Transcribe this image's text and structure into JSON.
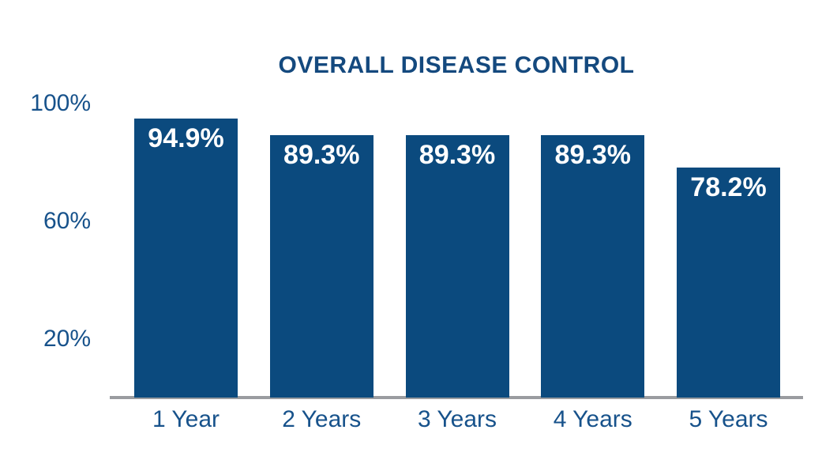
{
  "chart_data": {
    "type": "bar",
    "title": "OVERALL DISEASE CONTROL",
    "categories": [
      "1 Year",
      "2 Years",
      "3 Years",
      "4 Years",
      "5 Years"
    ],
    "values": [
      94.9,
      89.3,
      89.3,
      89.3,
      78.2
    ],
    "value_labels": [
      "94.9%",
      "89.3%",
      "89.3%",
      "89.3%",
      "78.2%"
    ],
    "xlabel": "",
    "ylabel": "",
    "ylim": [
      0,
      100
    ],
    "yticks": [
      20,
      60,
      100
    ],
    "ytick_labels_top_to_bottom": [
      "100%",
      "60%",
      "20%"
    ],
    "grid": false,
    "legend": null,
    "bar_labels_inside": true,
    "colors": {
      "bar": "#0b4a7e",
      "title": "#14497e",
      "tick_label": "#17528b",
      "value_label": "#ffffff",
      "axis_line": "#9a9ca0",
      "background": "#ffffff"
    }
  }
}
